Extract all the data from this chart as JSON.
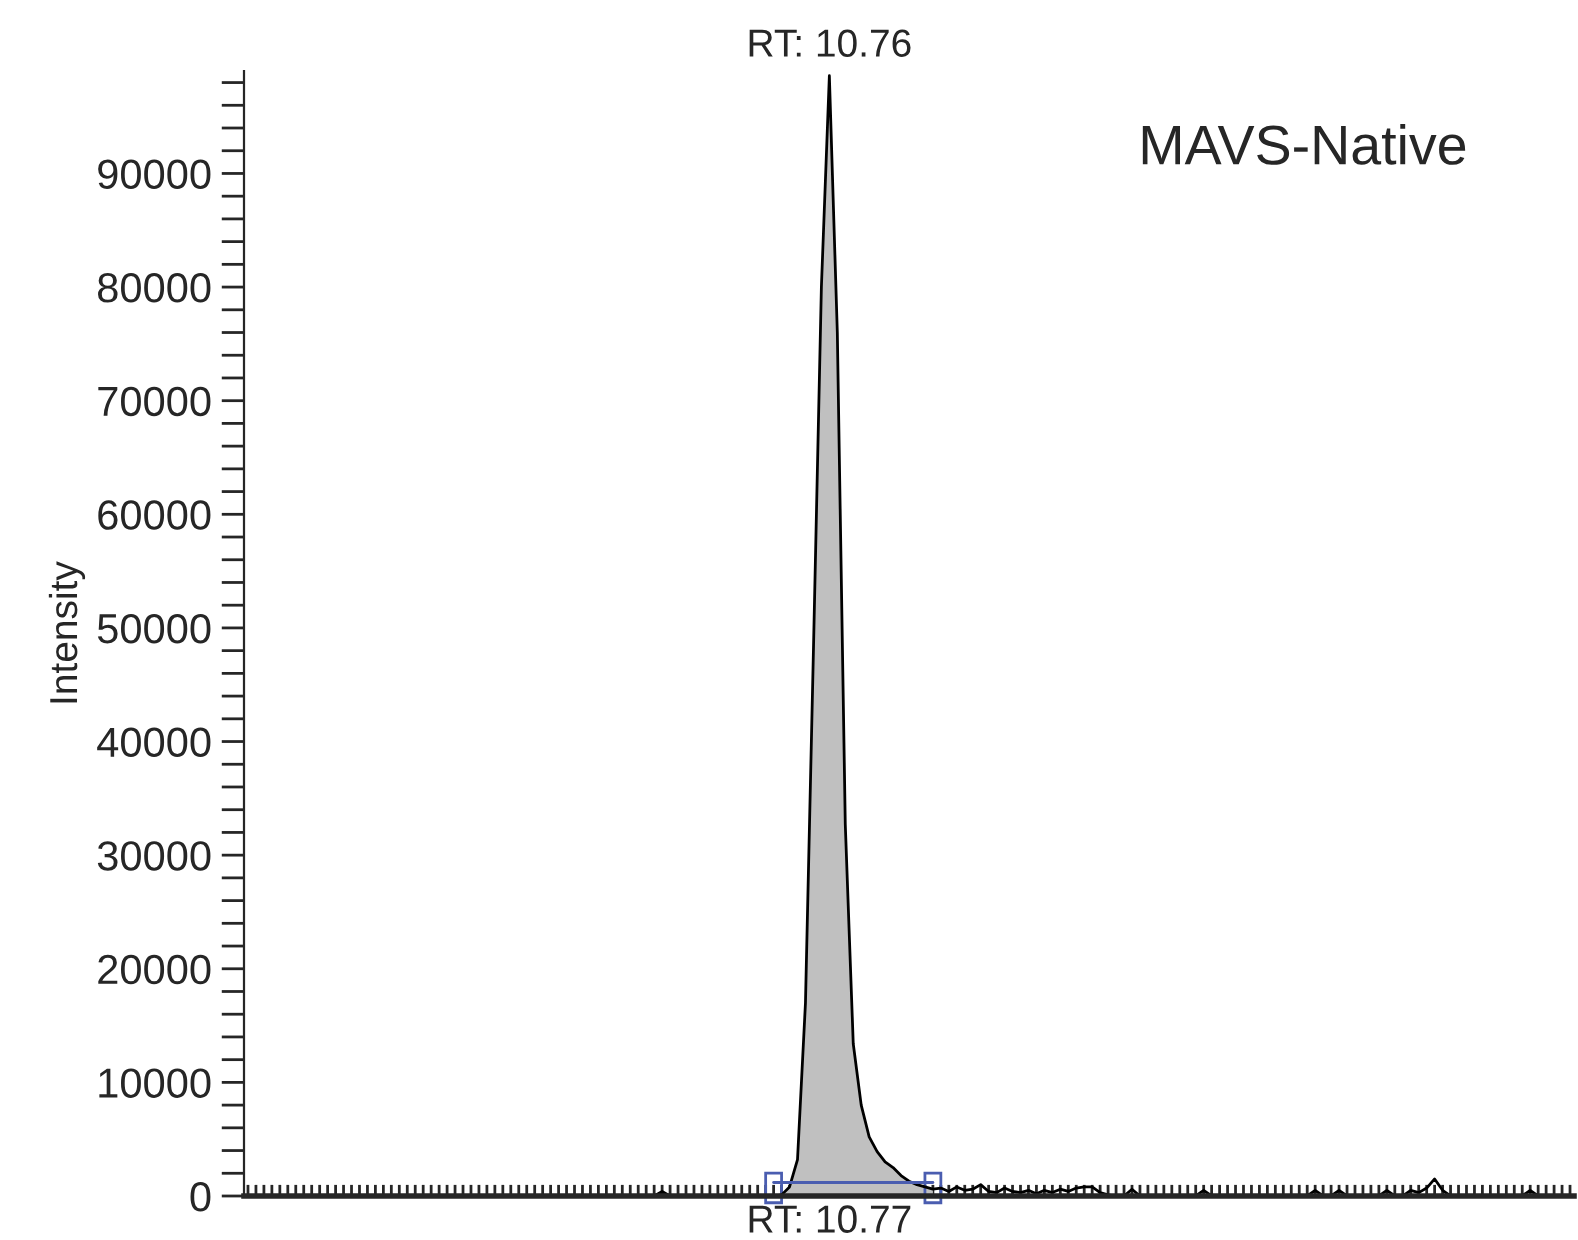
{
  "chart_data": {
    "type": "line",
    "ylabel": "Intensity",
    "annotations": [
      "RT: 10.76",
      "RT: 10.77",
      "MAVS-Native"
    ],
    "categories": [
      null,
      null,
      null,
      null,
      null,
      null,
      null,
      null,
      null,
      null,
      null,
      null,
      null,
      null,
      null,
      null,
      null,
      null,
      null,
      null,
      null,
      null,
      null,
      null,
      null,
      null,
      null,
      null,
      null,
      null,
      null,
      null,
      null,
      null,
      null,
      null,
      null,
      null,
      null,
      null,
      null,
      null,
      null,
      null,
      null,
      null,
      null,
      null,
      null,
      null,
      null,
      null,
      null,
      null,
      null,
      null,
      null,
      null,
      null,
      null,
      null,
      null,
      null,
      null,
      null,
      null,
      null,
      null,
      null,
      null,
      null,
      null,
      null,
      null,
      null,
      null,
      null,
      null,
      null,
      null,
      null,
      null,
      null,
      null,
      null,
      null,
      null,
      null,
      null,
      null,
      null,
      null,
      null,
      null,
      null,
      null,
      null,
      null,
      null,
      null,
      null,
      null,
      null,
      null,
      null,
      null,
      null,
      null,
      null,
      null,
      null,
      null,
      null,
      null,
      null,
      null,
      null,
      null,
      null,
      null,
      null,
      null,
      null,
      null,
      null,
      null,
      null,
      null,
      null,
      null,
      null,
      null,
      null,
      null,
      null,
      null,
      null,
      null,
      null,
      null,
      null,
      null,
      null,
      null,
      null,
      null,
      null,
      null,
      null,
      null,
      null,
      null,
      null,
      null,
      null,
      null,
      null,
      null,
      null,
      null,
      null,
      null,
      null,
      null,
      null,
      null,
      null
    ],
    "series": [
      {
        "type": "area",
        "color": "#c0c0c0",
        "values": [
          null,
          null,
          null,
          null,
          null,
          null,
          null,
          null,
          null,
          null,
          null,
          null,
          null,
          null,
          null,
          null,
          null,
          null,
          null,
          null,
          null,
          null,
          null,
          null,
          null,
          null,
          null,
          null,
          null,
          null,
          null,
          null,
          null,
          null,
          null,
          null,
          null,
          null,
          null,
          null,
          null,
          null,
          null,
          null,
          null,
          null,
          null,
          null,
          null,
          null,
          null,
          null,
          null,
          null,
          null,
          null,
          null,
          null,
          null,
          null,
          null,
          null,
          null,
          null,
          null,
          null,
          0,
          100,
          800,
          3200,
          17000,
          48000,
          80000,
          98600,
          76000,
          32700,
          13400,
          8000,
          5200,
          3900,
          3000,
          2500,
          1800,
          1300,
          1000,
          800,
          600,
          null,
          null,
          null,
          null,
          null,
          null,
          null,
          null,
          null,
          null,
          null,
          null,
          null,
          null,
          null,
          null,
          null,
          null,
          null,
          null,
          null,
          null,
          null,
          null,
          null,
          null,
          null,
          null,
          null,
          null,
          null,
          null,
          null,
          null,
          null,
          null,
          null,
          null,
          null,
          null,
          null,
          null,
          null,
          null,
          null,
          null,
          null,
          null,
          null,
          null,
          null,
          null,
          null,
          null,
          null,
          null,
          null,
          null,
          null,
          null,
          null,
          null,
          null,
          null,
          null,
          null,
          null,
          null,
          null,
          null,
          null,
          null,
          null,
          null,
          null,
          null,
          null,
          null,
          null,
          null
        ]
      },
      {
        "color": "#000000",
        "values": [
          0,
          0,
          0,
          0,
          0,
          0,
          0,
          0,
          0,
          0,
          0,
          0,
          0,
          0,
          0,
          0,
          0,
          0,
          0,
          0,
          0,
          0,
          0,
          0,
          0,
          0,
          0,
          0,
          0,
          0,
          0,
          0,
          0,
          0,
          0,
          0,
          0,
          0,
          0,
          0,
          0,
          0,
          0,
          0,
          0,
          0,
          0,
          0,
          0,
          0,
          0,
          0,
          400,
          0,
          0,
          0,
          0,
          0,
          0,
          0,
          0,
          0,
          0,
          0,
          0,
          0,
          0,
          100,
          800,
          3200,
          17000,
          48000,
          80000,
          98600,
          76000,
          32700,
          13400,
          8000,
          5200,
          3900,
          3000,
          2500,
          1800,
          1300,
          1000,
          800,
          600,
          700,
          400,
          800,
          500,
          600,
          1000,
          400,
          300,
          700,
          400,
          300,
          500,
          200,
          500,
          300,
          600,
          400,
          700,
          800,
          800,
          300,
          100,
          0,
          0,
          600,
          0,
          0,
          0,
          0,
          0,
          0,
          0,
          0,
          500,
          0,
          0,
          0,
          0,
          0,
          0,
          0,
          0,
          0,
          0,
          0,
          0,
          0,
          500,
          0,
          0,
          500,
          0,
          0,
          0,
          0,
          0,
          500,
          0,
          0,
          500,
          300,
          700,
          1500,
          500,
          0,
          0,
          0,
          0,
          0,
          0,
          0,
          0,
          0,
          0,
          500,
          0,
          0,
          0,
          0,
          0
        ]
      }
    ],
    "ylim": [
      0,
      99000
    ],
    "yticks": [
      0,
      {
        "value": 2000,
        "label": null
      },
      {
        "value": 4000,
        "label": null
      },
      {
        "value": 6000,
        "label": null
      },
      {
        "value": 8000,
        "label": null
      },
      10000,
      {
        "value": 12000,
        "label": null
      },
      {
        "value": 14000,
        "label": null
      },
      {
        "value": 16000,
        "label": null
      },
      {
        "value": 18000,
        "label": null
      },
      20000,
      {
        "value": 22000,
        "label": null
      },
      {
        "value": 24000,
        "label": null
      },
      {
        "value": 26000,
        "label": null
      },
      {
        "value": 28000,
        "label": null
      },
      30000,
      {
        "value": 32000,
        "label": null
      },
      {
        "value": 34000,
        "label": null
      },
      {
        "value": 36000,
        "label": null
      },
      {
        "value": 38000,
        "label": null
      },
      40000,
      {
        "value": 42000,
        "label": null
      },
      {
        "value": 44000,
        "label": null
      },
      {
        "value": 46000,
        "label": null
      },
      {
        "value": 48000,
        "label": null
      },
      50000,
      {
        "value": 52000,
        "label": null
      },
      {
        "value": 54000,
        "label": null
      },
      {
        "value": 56000,
        "label": null
      },
      {
        "value": 58000,
        "label": null
      },
      60000,
      {
        "value": 62000,
        "label": null
      },
      {
        "value": 64000,
        "label": null
      },
      {
        "value": 66000,
        "label": null
      },
      {
        "value": 68000,
        "label": null
      },
      70000,
      {
        "value": 72000,
        "label": null
      },
      {
        "value": 74000,
        "label": null
      },
      {
        "value": 76000,
        "label": null
      },
      {
        "value": 78000,
        "label": null
      },
      80000,
      {
        "value": 82000,
        "label": null
      },
      {
        "value": 84000,
        "label": null
      },
      {
        "value": 86000,
        "label": null
      },
      {
        "value": 88000,
        "label": null
      },
      90000,
      {
        "value": 92000,
        "label": null
      },
      {
        "value": 94000,
        "label": null
      },
      {
        "value": 96000,
        "label": null
      },
      {
        "value": 98000,
        "label": null
      }
    ],
    "tick_labels": "y",
    "grid": false,
    "legend": false
  }
}
